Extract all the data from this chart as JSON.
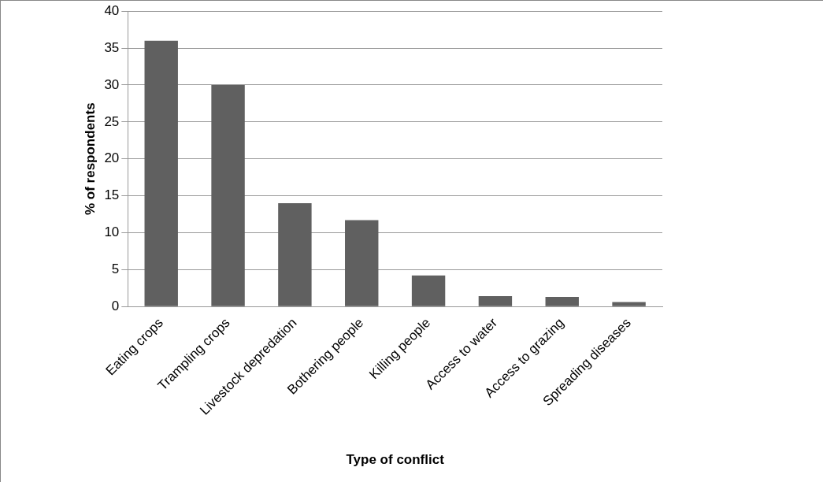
{
  "chart_data": {
    "type": "bar",
    "xlabel": "Type of conflict",
    "ylabel": "% of respondents",
    "categories": [
      "Eating crops",
      "Trampling crops",
      "Livestock depredation",
      "Bothering people",
      "Killing people",
      "Access to water",
      "Access to grazing",
      "Spreading diseases"
    ],
    "values": [
      36,
      30,
      14,
      11.7,
      4.2,
      1.4,
      1.3,
      0.6
    ],
    "color": "#606060",
    "ylim": [
      0,
      40
    ],
    "yticks": [
      0,
      5,
      10,
      15,
      20,
      25,
      30,
      35,
      40
    ],
    "grid": "y",
    "legend": false
  }
}
